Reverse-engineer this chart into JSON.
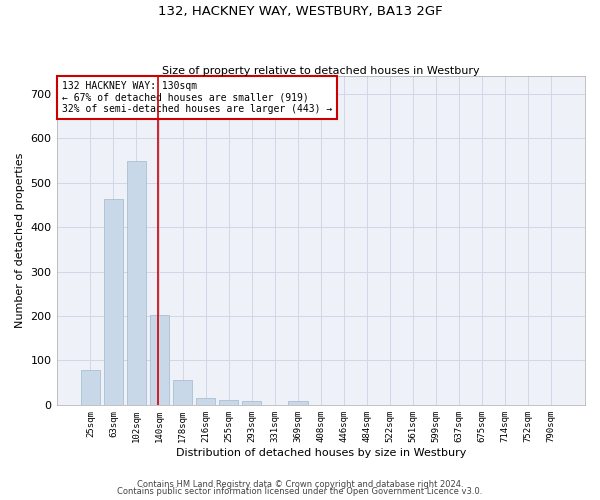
{
  "title": "132, HACKNEY WAY, WESTBURY, BA13 2GF",
  "subtitle": "Size of property relative to detached houses in Westbury",
  "xlabel": "Distribution of detached houses by size in Westbury",
  "ylabel": "Number of detached properties",
  "bar_labels": [
    "25sqm",
    "63sqm",
    "102sqm",
    "140sqm",
    "178sqm",
    "216sqm",
    "255sqm",
    "293sqm",
    "331sqm",
    "369sqm",
    "408sqm",
    "446sqm",
    "484sqm",
    "522sqm",
    "561sqm",
    "599sqm",
    "637sqm",
    "675sqm",
    "714sqm",
    "752sqm",
    "790sqm"
  ],
  "bar_values": [
    78,
    463,
    550,
    203,
    57,
    15,
    10,
    8,
    0,
    8,
    0,
    0,
    0,
    0,
    0,
    0,
    0,
    0,
    0,
    0,
    0
  ],
  "bar_color": "#c8d8e8",
  "bar_edgecolor": "#a0b8cc",
  "property_line_label": "132 HACKNEY WAY: 130sqm",
  "annotation_line1": "← 67% of detached houses are smaller (919)",
  "annotation_line2": "32% of semi-detached houses are larger (443) →",
  "annotation_box_color": "#ffffff",
  "annotation_box_edgecolor": "#cc0000",
  "vline_color": "#cc0000",
  "vline_x": 2.93,
  "ylim": [
    0,
    740
  ],
  "yticks": [
    0,
    100,
    200,
    300,
    400,
    500,
    600,
    700
  ],
  "grid_color": "#d0d8e8",
  "bg_color": "#eef2f8",
  "footer_line1": "Contains HM Land Registry data © Crown copyright and database right 2024.",
  "footer_line2": "Contains public sector information licensed under the Open Government Licence v3.0."
}
